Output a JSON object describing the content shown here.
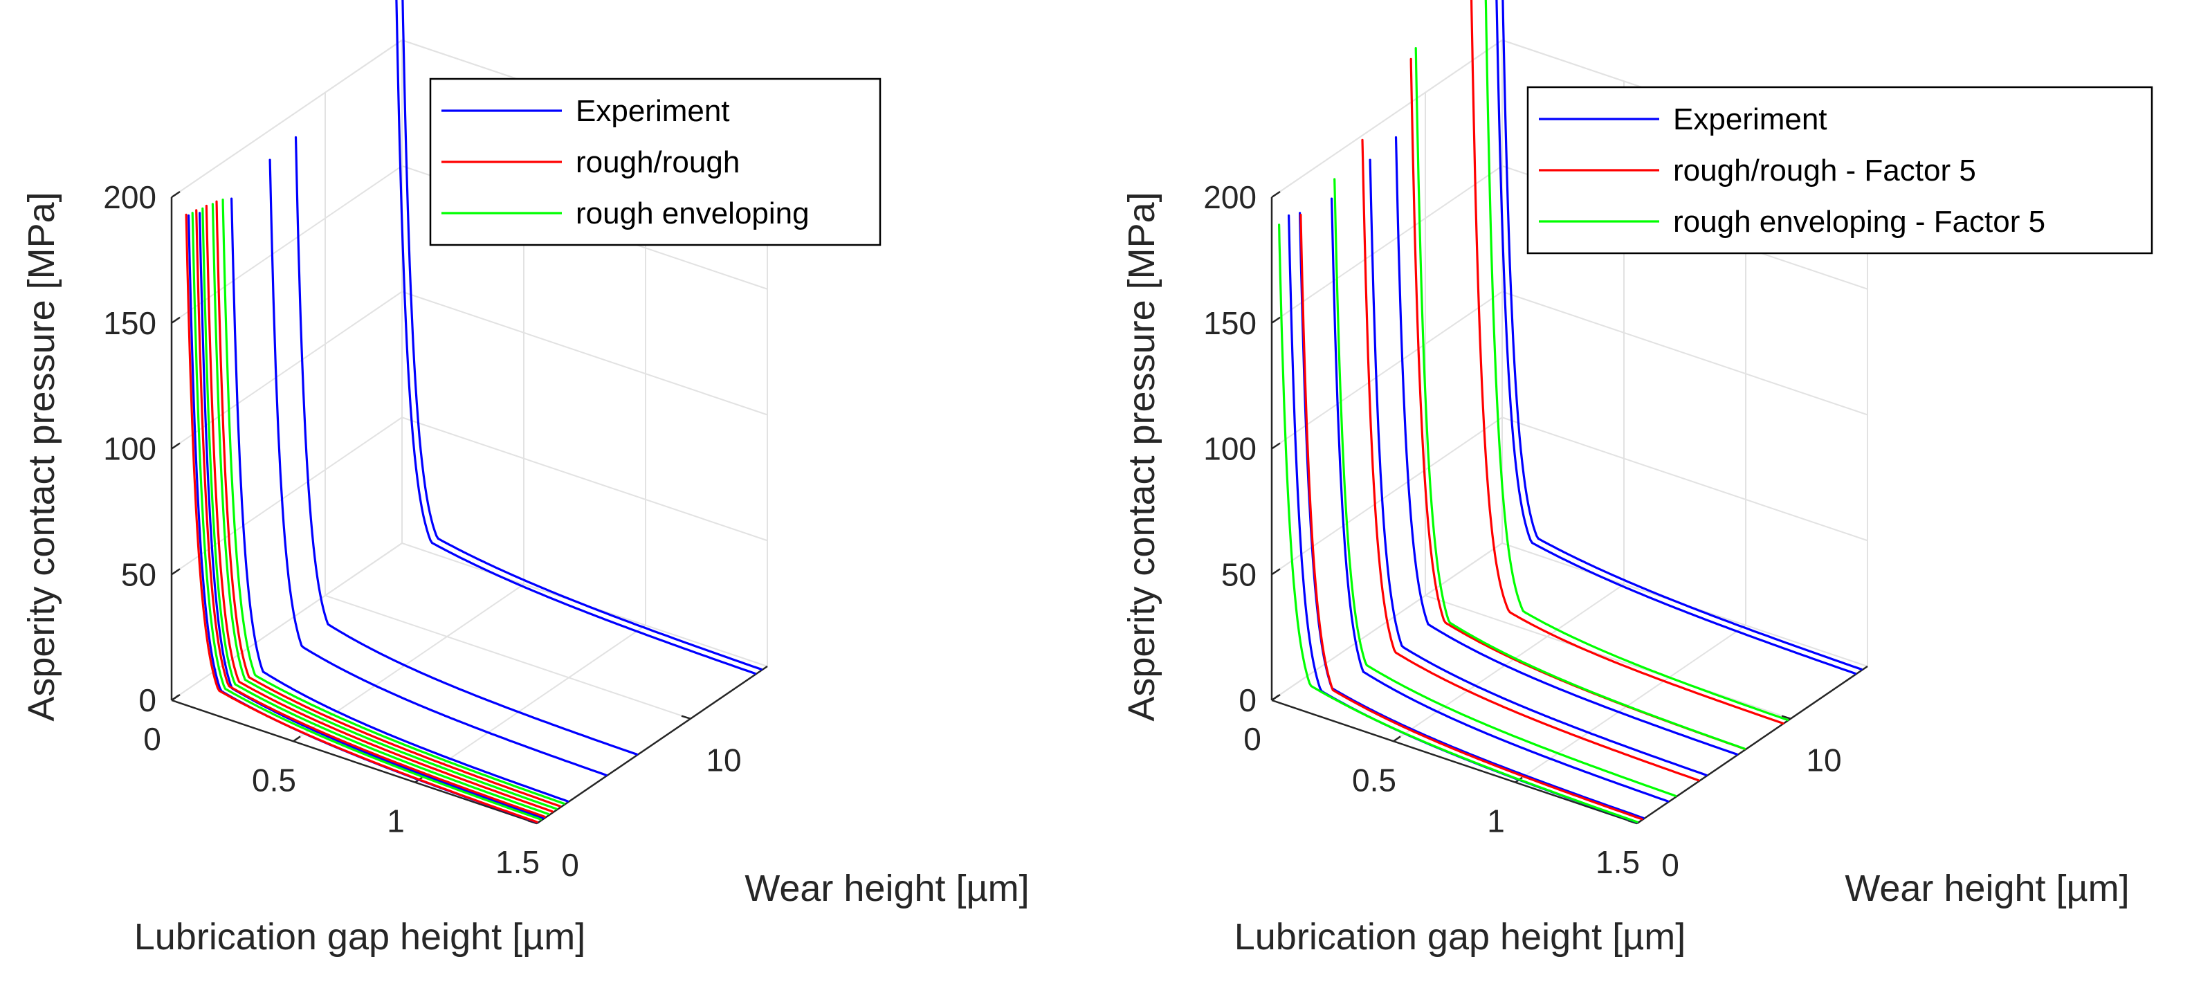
{
  "chart_data": [
    {
      "type": "line",
      "projection": "3d",
      "xlabel": "Lubrication gap height [µm]",
      "ylabel": "Wear height [µm]",
      "zlabel": "Asperity contact pressure [MPa]",
      "xlim": [
        0,
        1.5
      ],
      "ylim": [
        0,
        15
      ],
      "zlim": [
        0,
        200
      ],
      "xticks": [
        {
          "v": 0,
          "label": "0"
        },
        {
          "v": 0.5,
          "label": "0.5"
        },
        {
          "v": 1,
          "label": "1"
        },
        {
          "v": 1.5,
          "label": "1.5"
        }
      ],
      "yticks": [
        {
          "v": 0,
          "label": "0"
        },
        {
          "v": 10,
          "label": "10"
        }
      ],
      "zticks": [
        {
          "v": 0,
          "label": "0"
        },
        {
          "v": 50,
          "label": "50"
        },
        {
          "v": 100,
          "label": "100"
        },
        {
          "v": 150,
          "label": "150"
        },
        {
          "v": 200,
          "label": "200"
        }
      ],
      "grid": true,
      "legend_position": "top-right",
      "legend": [
        {
          "name": "Experiment",
          "color": "#0000ff"
        },
        {
          "name": "rough/rough",
          "color": "#ff0000"
        },
        {
          "name": "rough enveloping",
          "color": "#00ff00"
        }
      ],
      "series": [
        {
          "name": "Experiment",
          "color": "#0000ff",
          "wear": 0.0,
          "pmax": 195,
          "x0": 0.07,
          "x1": 0.14,
          "k": 0.42
        },
        {
          "name": "Experiment",
          "color": "#0000ff",
          "wear": 0.4,
          "pmax": 195,
          "x0": 0.09,
          "x1": 0.16,
          "k": 0.42
        },
        {
          "name": "Experiment",
          "color": "#0000ff",
          "wear": 2.0,
          "pmax": 195,
          "x0": 0.12,
          "x1": 0.22,
          "k": 0.4
        },
        {
          "name": "Experiment",
          "color": "#0000ff",
          "wear": 4.5,
          "pmax": 200,
          "x0": 0.12,
          "x1": 0.21,
          "k": 0.4
        },
        {
          "name": "Experiment",
          "color": "#0000ff",
          "wear": 6.5,
          "pmax": 200,
          "x0": 0.1,
          "x1": 0.19,
          "k": 0.38
        },
        {
          "name": "Experiment",
          "color": "#0000ff",
          "wear": 14.2,
          "pmax": 260,
          "x0": 0.02,
          "x1": 0.05,
          "k": 0.45
        },
        {
          "name": "Experiment",
          "color": "#0000ff",
          "wear": 14.6,
          "pmax": 260,
          "x0": 0.02,
          "x1": 0.05,
          "k": 0.45
        },
        {
          "name": "rough/rough",
          "color": "#ff0000",
          "wear": 0.0,
          "pmax": 195,
          "x0": 0.06,
          "x1": 0.12,
          "k": 0.45
        },
        {
          "name": "rough/rough",
          "color": "#ff0000",
          "wear": 0.5,
          "pmax": 195,
          "x0": 0.07,
          "x1": 0.13,
          "k": 0.45
        },
        {
          "name": "rough/rough",
          "color": "#ff0000",
          "wear": 1.0,
          "pmax": 195,
          "x0": 0.08,
          "x1": 0.14,
          "k": 0.45
        },
        {
          "name": "rough/rough",
          "color": "#ff0000",
          "wear": 1.5,
          "pmax": 195,
          "x0": 0.09,
          "x1": 0.15,
          "k": 0.45
        },
        {
          "name": "rough enveloping",
          "color": "#00ff00",
          "wear": 0.25,
          "pmax": 195,
          "x0": 0.07,
          "x1": 0.13,
          "k": 0.45
        },
        {
          "name": "rough enveloping",
          "color": "#00ff00",
          "wear": 0.75,
          "pmax": 195,
          "x0": 0.08,
          "x1": 0.14,
          "k": 0.45
        },
        {
          "name": "rough enveloping",
          "color": "#00ff00",
          "wear": 1.25,
          "pmax": 195,
          "x0": 0.09,
          "x1": 0.15,
          "k": 0.45
        },
        {
          "name": "rough enveloping",
          "color": "#00ff00",
          "wear": 1.75,
          "pmax": 195,
          "x0": 0.1,
          "x1": 0.16,
          "k": 0.45
        }
      ]
    },
    {
      "type": "line",
      "projection": "3d",
      "xlabel": "Lubrication gap height [µm]",
      "ylabel": "Wear height [µm]",
      "zlabel": "Asperity contact pressure [MPa]",
      "xlim": [
        0,
        1.5
      ],
      "ylim": [
        0,
        15
      ],
      "zlim": [
        0,
        200
      ],
      "xticks": [
        {
          "v": 0,
          "label": "0"
        },
        {
          "v": 0.5,
          "label": "0.5"
        },
        {
          "v": 1,
          "label": "1"
        },
        {
          "v": 1.5,
          "label": "1.5"
        }
      ],
      "yticks": [
        {
          "v": 0,
          "label": "0"
        },
        {
          "v": 10,
          "label": "10"
        }
      ],
      "zticks": [
        {
          "v": 0,
          "label": "0"
        },
        {
          "v": 50,
          "label": "50"
        },
        {
          "v": 100,
          "label": "100"
        },
        {
          "v": 150,
          "label": "150"
        },
        {
          "v": 200,
          "label": "200"
        }
      ],
      "grid": true,
      "legend_position": "top-right",
      "legend": [
        {
          "name": "Experiment",
          "color": "#0000ff"
        },
        {
          "name": "rough/rough - Factor 5",
          "color": "#ff0000"
        },
        {
          "name": "rough enveloping - Factor 5",
          "color": "#00ff00"
        }
      ],
      "series": [
        {
          "name": "Experiment",
          "color": "#0000ff",
          "wear": 0.0,
          "pmax": 195,
          "x0": 0.07,
          "x1": 0.14,
          "k": 0.42
        },
        {
          "name": "Experiment",
          "color": "#0000ff",
          "wear": 0.4,
          "pmax": 195,
          "x0": 0.09,
          "x1": 0.16,
          "k": 0.42
        },
        {
          "name": "Experiment",
          "color": "#0000ff",
          "wear": 2.0,
          "pmax": 195,
          "x0": 0.12,
          "x1": 0.22,
          "k": 0.4
        },
        {
          "name": "Experiment",
          "color": "#0000ff",
          "wear": 4.5,
          "pmax": 200,
          "x0": 0.12,
          "x1": 0.21,
          "k": 0.4
        },
        {
          "name": "Experiment",
          "color": "#0000ff",
          "wear": 6.5,
          "pmax": 200,
          "x0": 0.1,
          "x1": 0.19,
          "k": 0.38
        },
        {
          "name": "Experiment",
          "color": "#0000ff",
          "wear": 14.2,
          "pmax": 260,
          "x0": 0.02,
          "x1": 0.05,
          "k": 0.45
        },
        {
          "name": "Experiment",
          "color": "#0000ff",
          "wear": 14.6,
          "pmax": 260,
          "x0": 0.02,
          "x1": 0.05,
          "k": 0.45
        },
        {
          "name": "rough/rough - Factor 5",
          "color": "#ff0000",
          "wear": 0.3,
          "pmax": 195,
          "x0": 0.1,
          "x1": 0.17,
          "k": 0.42
        },
        {
          "name": "rough/rough - Factor 5",
          "color": "#ff0000",
          "wear": 4.0,
          "pmax": 210,
          "x0": 0.12,
          "x1": 0.21,
          "k": 0.4
        },
        {
          "name": "rough/rough - Factor 5",
          "color": "#ff0000",
          "wear": 7.0,
          "pmax": 230,
          "x0": 0.13,
          "x1": 0.22,
          "k": 0.4
        },
        {
          "name": "rough/rough - Factor 5",
          "color": "#ff0000",
          "wear": 9.5,
          "pmax": 250,
          "x0": 0.22,
          "x1": 0.24,
          "k": 0.32
        },
        {
          "name": "rough enveloping - Factor 5",
          "color": "#00ff00",
          "wear": 0.0,
          "pmax": 190,
          "x0": 0.03,
          "x1": 0.12,
          "k": 0.45
        },
        {
          "name": "rough enveloping - Factor 5",
          "color": "#00ff00",
          "wear": 2.5,
          "pmax": 200,
          "x0": 0.1,
          "x1": 0.2,
          "k": 0.42
        },
        {
          "name": "rough enveloping - Factor 5",
          "color": "#00ff00",
          "wear": 7.0,
          "pmax": 235,
          "x0": 0.15,
          "x1": 0.26,
          "k": 0.4
        },
        {
          "name": "rough enveloping - Factor 5",
          "color": "#00ff00",
          "wear": 9.8,
          "pmax": 250,
          "x0": 0.26,
          "x1": 0.28,
          "k": 0.34
        }
      ]
    }
  ]
}
